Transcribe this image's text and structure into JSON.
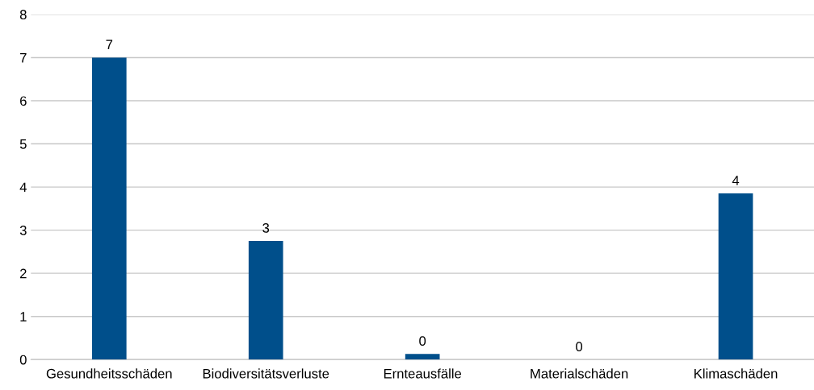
{
  "chart_data": {
    "type": "bar",
    "categories": [
      "Gesundheitsschäden",
      "Biodiversitätsverluste",
      "Ernteausfälle",
      "Materialschäden",
      "Klimaschäden"
    ],
    "values": [
      7.0,
      2.75,
      0.13,
      0,
      3.85
    ],
    "value_labels": [
      "7",
      "3",
      "0",
      "0",
      "4"
    ],
    "color": "#004f8b",
    "ylim": [
      0,
      8
    ],
    "yticks": [
      0,
      1,
      2,
      3,
      4,
      5,
      6,
      7,
      8
    ],
    "grid": "y"
  }
}
